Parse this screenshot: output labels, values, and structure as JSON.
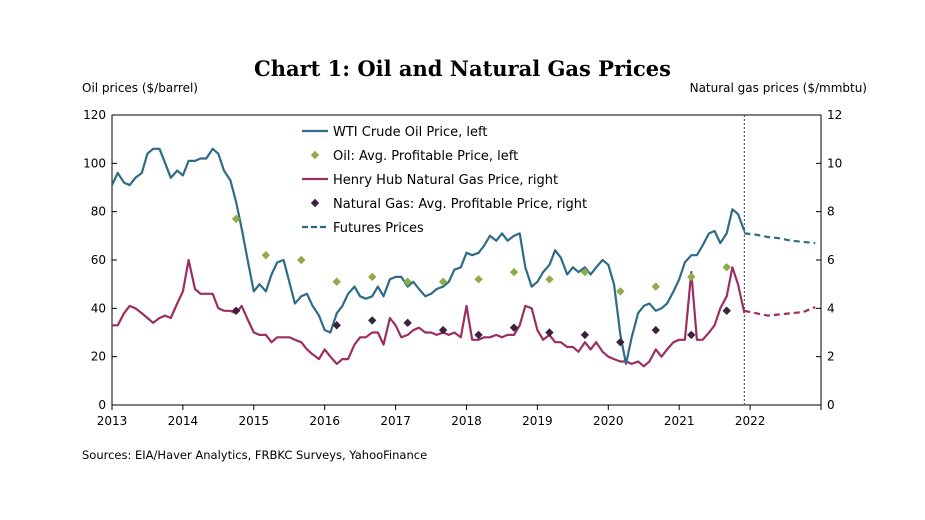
{
  "title": "Chart 1: Oil and Natural Gas Prices",
  "left_axis_label": "Oil prices ($/barrel)",
  "right_axis_label": "Natural gas prices ($/mmbtu)",
  "source": "Sources: EIA/Haver Analytics, FRBKC Surveys, YahooFinance",
  "colors": {
    "oil": "#2e6b86",
    "oil_points": "#8fac4a",
    "gas": "#9b2f62",
    "gas_points": "#3a2140",
    "futures_marker": "#555555"
  },
  "chart_data": {
    "type": "line",
    "x_range": [
      2013,
      2023
    ],
    "x_ticks": [
      "2013",
      "2014",
      "2015",
      "2016",
      "2017",
      "2018",
      "2019",
      "2020",
      "2021",
      "2022"
    ],
    "y_left": {
      "range": [
        0,
        120
      ],
      "ticks": [
        "0",
        "20",
        "40",
        "60",
        "80",
        "100",
        "120"
      ]
    },
    "y_right": {
      "range": [
        0,
        12
      ],
      "ticks": [
        "0",
        "2",
        "4",
        "6",
        "8",
        "10",
        "12"
      ]
    },
    "futures_start": 2021.92,
    "series": [
      {
        "name": "WTI Crude Oil Price, left",
        "axis": "left",
        "style": "solid",
        "x": [
          2013.0,
          2013.08,
          2013.17,
          2013.25,
          2013.33,
          2013.42,
          2013.5,
          2013.58,
          2013.67,
          2013.75,
          2013.83,
          2013.92,
          2014.0,
          2014.08,
          2014.17,
          2014.25,
          2014.33,
          2014.42,
          2014.5,
          2014.58,
          2014.67,
          2014.75,
          2014.83,
          2014.92,
          2015.0,
          2015.08,
          2015.17,
          2015.25,
          2015.33,
          2015.42,
          2015.5,
          2015.58,
          2015.67,
          2015.75,
          2015.83,
          2015.92,
          2016.0,
          2016.08,
          2016.17,
          2016.25,
          2016.33,
          2016.42,
          2016.5,
          2016.58,
          2016.67,
          2016.75,
          2016.83,
          2016.92,
          2017.0,
          2017.08,
          2017.17,
          2017.25,
          2017.33,
          2017.42,
          2017.5,
          2017.58,
          2017.67,
          2017.75,
          2017.83,
          2017.92,
          2018.0,
          2018.08,
          2018.17,
          2018.25,
          2018.33,
          2018.42,
          2018.5,
          2018.58,
          2018.67,
          2018.75,
          2018.83,
          2018.92,
          2019.0,
          2019.08,
          2019.17,
          2019.25,
          2019.33,
          2019.42,
          2019.5,
          2019.58,
          2019.67,
          2019.75,
          2019.83,
          2019.92,
          2020.0,
          2020.08,
          2020.17,
          2020.25,
          2020.33,
          2020.42,
          2020.5,
          2020.58,
          2020.67,
          2020.75,
          2020.83,
          2020.92,
          2021.0,
          2021.08,
          2021.17,
          2021.25,
          2021.33,
          2021.42,
          2021.5,
          2021.58,
          2021.67,
          2021.75,
          2021.83,
          2021.92
        ],
        "y": [
          91,
          96,
          92,
          91,
          94,
          96,
          104,
          106,
          106,
          100,
          94,
          97,
          95,
          101,
          101,
          102,
          102,
          106,
          104,
          97,
          93,
          84,
          73,
          59,
          47,
          50,
          47,
          54,
          59,
          60,
          51,
          42,
          45,
          46,
          41,
          37,
          31,
          30,
          38,
          41,
          46,
          49,
          45,
          44,
          45,
          49,
          45,
          52,
          53,
          53,
          49,
          51,
          48,
          45,
          46,
          48,
          49,
          51,
          56,
          57,
          63,
          62,
          63,
          66,
          70,
          68,
          71,
          68,
          70,
          71,
          57,
          49,
          51,
          55,
          58,
          64,
          61,
          54,
          57,
          55,
          57,
          54,
          57,
          60,
          58,
          50,
          29,
          17,
          28,
          38,
          41,
          42,
          39,
          40,
          42,
          47,
          52,
          59,
          62,
          62,
          66,
          71,
          72,
          67,
          71,
          81,
          79,
          72
        ]
      },
      {
        "name": "Oil: Avg. Profitable Price, left",
        "axis": "left",
        "style": "points",
        "x": [
          2014.75,
          2015.17,
          2015.67,
          2016.17,
          2016.67,
          2017.17,
          2017.67,
          2018.17,
          2018.67,
          2019.17,
          2019.67,
          2020.17,
          2020.67,
          2021.17,
          2021.67
        ],
        "y": [
          77,
          62,
          60,
          51,
          53,
          51,
          51,
          52,
          55,
          52,
          55,
          47,
          49,
          53,
          57
        ]
      },
      {
        "name": "Henry Hub Natural Gas Price, right",
        "axis": "right",
        "style": "solid",
        "x": [
          2013.0,
          2013.08,
          2013.17,
          2013.25,
          2013.33,
          2013.42,
          2013.5,
          2013.58,
          2013.67,
          2013.75,
          2013.83,
          2013.92,
          2014.0,
          2014.08,
          2014.17,
          2014.25,
          2014.33,
          2014.42,
          2014.5,
          2014.58,
          2014.67,
          2014.75,
          2014.83,
          2014.92,
          2015.0,
          2015.08,
          2015.17,
          2015.25,
          2015.33,
          2015.42,
          2015.5,
          2015.58,
          2015.67,
          2015.75,
          2015.83,
          2015.92,
          2016.0,
          2016.08,
          2016.17,
          2016.25,
          2016.33,
          2016.42,
          2016.5,
          2016.58,
          2016.67,
          2016.75,
          2016.83,
          2016.92,
          2017.0,
          2017.08,
          2017.17,
          2017.25,
          2017.33,
          2017.42,
          2017.5,
          2017.58,
          2017.67,
          2017.75,
          2017.83,
          2017.92,
          2018.0,
          2018.08,
          2018.17,
          2018.25,
          2018.33,
          2018.42,
          2018.5,
          2018.58,
          2018.67,
          2018.75,
          2018.83,
          2018.92,
          2019.0,
          2019.08,
          2019.17,
          2019.25,
          2019.33,
          2019.42,
          2019.5,
          2019.58,
          2019.67,
          2019.75,
          2019.83,
          2019.92,
          2020.0,
          2020.08,
          2020.17,
          2020.25,
          2020.33,
          2020.42,
          2020.5,
          2020.58,
          2020.67,
          2020.75,
          2020.83,
          2020.92,
          2021.0,
          2021.08,
          2021.17,
          2021.25,
          2021.33,
          2021.42,
          2021.5,
          2021.58,
          2021.67,
          2021.75,
          2021.83,
          2021.92
        ],
        "y": [
          3.3,
          3.3,
          3.8,
          4.1,
          4.0,
          3.8,
          3.6,
          3.4,
          3.6,
          3.7,
          3.6,
          4.2,
          4.7,
          6.0,
          4.8,
          4.6,
          4.6,
          4.6,
          4.0,
          3.9,
          3.9,
          3.8,
          4.1,
          3.5,
          3.0,
          2.9,
          2.9,
          2.6,
          2.8,
          2.8,
          2.8,
          2.7,
          2.6,
          2.3,
          2.1,
          1.9,
          2.3,
          2.0,
          1.7,
          1.9,
          1.9,
          2.5,
          2.8,
          2.8,
          3.0,
          3.0,
          2.5,
          3.6,
          3.3,
          2.8,
          2.9,
          3.1,
          3.2,
          3.0,
          3.0,
          2.9,
          3.0,
          2.9,
          3.0,
          2.8,
          4.1,
          2.7,
          2.7,
          2.8,
          2.8,
          2.9,
          2.8,
          2.9,
          2.9,
          3.3,
          4.1,
          4.0,
          3.1,
          2.7,
          2.9,
          2.6,
          2.6,
          2.4,
          2.4,
          2.2,
          2.6,
          2.3,
          2.6,
          2.2,
          2.0,
          1.9,
          1.8,
          1.8,
          1.7,
          1.8,
          1.6,
          1.8,
          2.3,
          2.0,
          2.3,
          2.6,
          2.7,
          2.7,
          5.5,
          2.7,
          2.7,
          3.0,
          3.3,
          4.0,
          4.5,
          5.7,
          5.0,
          3.8
        ]
      },
      {
        "name": "Natural Gas: Avg. Profitable Price, right",
        "axis": "right",
        "style": "points",
        "x": [
          2014.75,
          2016.17,
          2016.67,
          2017.17,
          2017.67,
          2018.17,
          2018.67,
          2019.17,
          2019.67,
          2020.17,
          2020.67,
          2021.17,
          2021.67
        ],
        "y": [
          3.9,
          3.3,
          3.5,
          3.4,
          3.1,
          2.9,
          3.2,
          3.0,
          2.9,
          2.6,
          3.1,
          2.9,
          3.9
        ]
      },
      {
        "name": "Futures Prices",
        "style": "dashed"
      }
    ],
    "futures": {
      "oil": {
        "x": [
          2021.92,
          2022.08,
          2022.25,
          2022.42,
          2022.58,
          2022.75,
          2022.92
        ],
        "y": [
          71,
          70.5,
          69.5,
          69,
          68,
          67.5,
          67
        ]
      },
      "gas": {
        "x": [
          2021.92,
          2022.08,
          2022.25,
          2022.42,
          2022.58,
          2022.75,
          2022.92
        ],
        "y": [
          3.9,
          3.8,
          3.7,
          3.75,
          3.8,
          3.85,
          4.05
        ]
      }
    }
  }
}
